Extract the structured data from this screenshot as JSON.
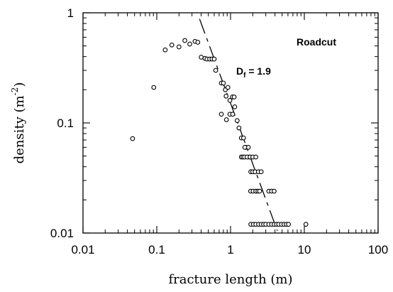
{
  "chart_data": {
    "type": "scatter",
    "title": "",
    "xlabel": "fracture length  (m)",
    "ylabel_main": "density  (m",
    "ylabel_exp": "-2",
    "ylabel_close": ")",
    "xscale": "log",
    "yscale": "log",
    "xlim": [
      0.01,
      100
    ],
    "ylim": [
      0.01,
      1
    ],
    "x_major_ticks": [
      0.01,
      0.1,
      1,
      10,
      100
    ],
    "x_tick_labels": [
      "0.01",
      "0.1",
      "1",
      "10",
      "100"
    ],
    "y_major_ticks": [
      0.01,
      0.1,
      1
    ],
    "y_tick_labels": [
      "0.01",
      "0.1",
      "1"
    ],
    "grid": false,
    "annotation_label": "Roadcut",
    "fit_label_main": "D",
    "fit_label_sub": "f",
    "fit_label_rest": " = 1.9",
    "fit_line": {
      "x": [
        0.38,
        4.3
      ],
      "y": [
        0.88,
        0.0105
      ]
    },
    "series": [
      {
        "x": [
          0.047,
          0.091,
          0.13,
          0.16,
          0.2,
          0.24,
          0.28,
          0.33,
          0.36,
          0.4,
          0.45,
          0.48,
          0.52,
          0.56,
          0.6,
          0.63,
          0.75,
          0.8,
          0.85,
          0.92,
          0.87,
          0.98,
          1.06,
          1.12,
          1.14,
          0.98,
          0.75,
          0.88,
          1.07,
          1.23,
          1.3,
          1.4,
          1.5,
          1.6,
          1.74,
          1.8,
          1.4,
          1.47,
          1.55,
          1.68,
          1.56,
          1.88,
          2.0,
          2.15,
          1.87,
          2.02,
          2.2,
          1.84,
          2.0,
          2.2,
          2.38,
          2.6,
          2.2,
          2.35,
          2.48,
          3.3,
          3.6,
          3.9,
          1.88,
          2.04,
          2.2,
          2.4,
          2.6,
          2.8,
          3.0,
          3.3,
          3.6,
          3.9,
          4.2,
          4.5,
          4.9,
          5.3,
          5.7,
          6.1,
          10.5
        ],
        "y": [
          0.072,
          0.21,
          0.46,
          0.51,
          0.49,
          0.56,
          0.52,
          0.55,
          0.54,
          0.395,
          0.385,
          0.38,
          0.38,
          0.38,
          0.38,
          0.3,
          0.23,
          0.23,
          0.2,
          0.21,
          0.175,
          0.16,
          0.172,
          0.172,
          0.14,
          0.12,
          0.12,
          0.107,
          0.12,
          0.105,
          0.09,
          0.073,
          0.073,
          0.06,
          0.06,
          0.049,
          0.049,
          0.049,
          0.049,
          0.049,
          0.06,
          0.036,
          0.036,
          0.036,
          0.024,
          0.024,
          0.024,
          0.049,
          0.049,
          0.049,
          0.036,
          0.036,
          0.024,
          0.024,
          0.024,
          0.024,
          0.024,
          0.024,
          0.012,
          0.012,
          0.012,
          0.012,
          0.012,
          0.012,
          0.012,
          0.012,
          0.012,
          0.012,
          0.012,
          0.012,
          0.012,
          0.012,
          0.012,
          0.012,
          0.012
        ]
      }
    ]
  }
}
